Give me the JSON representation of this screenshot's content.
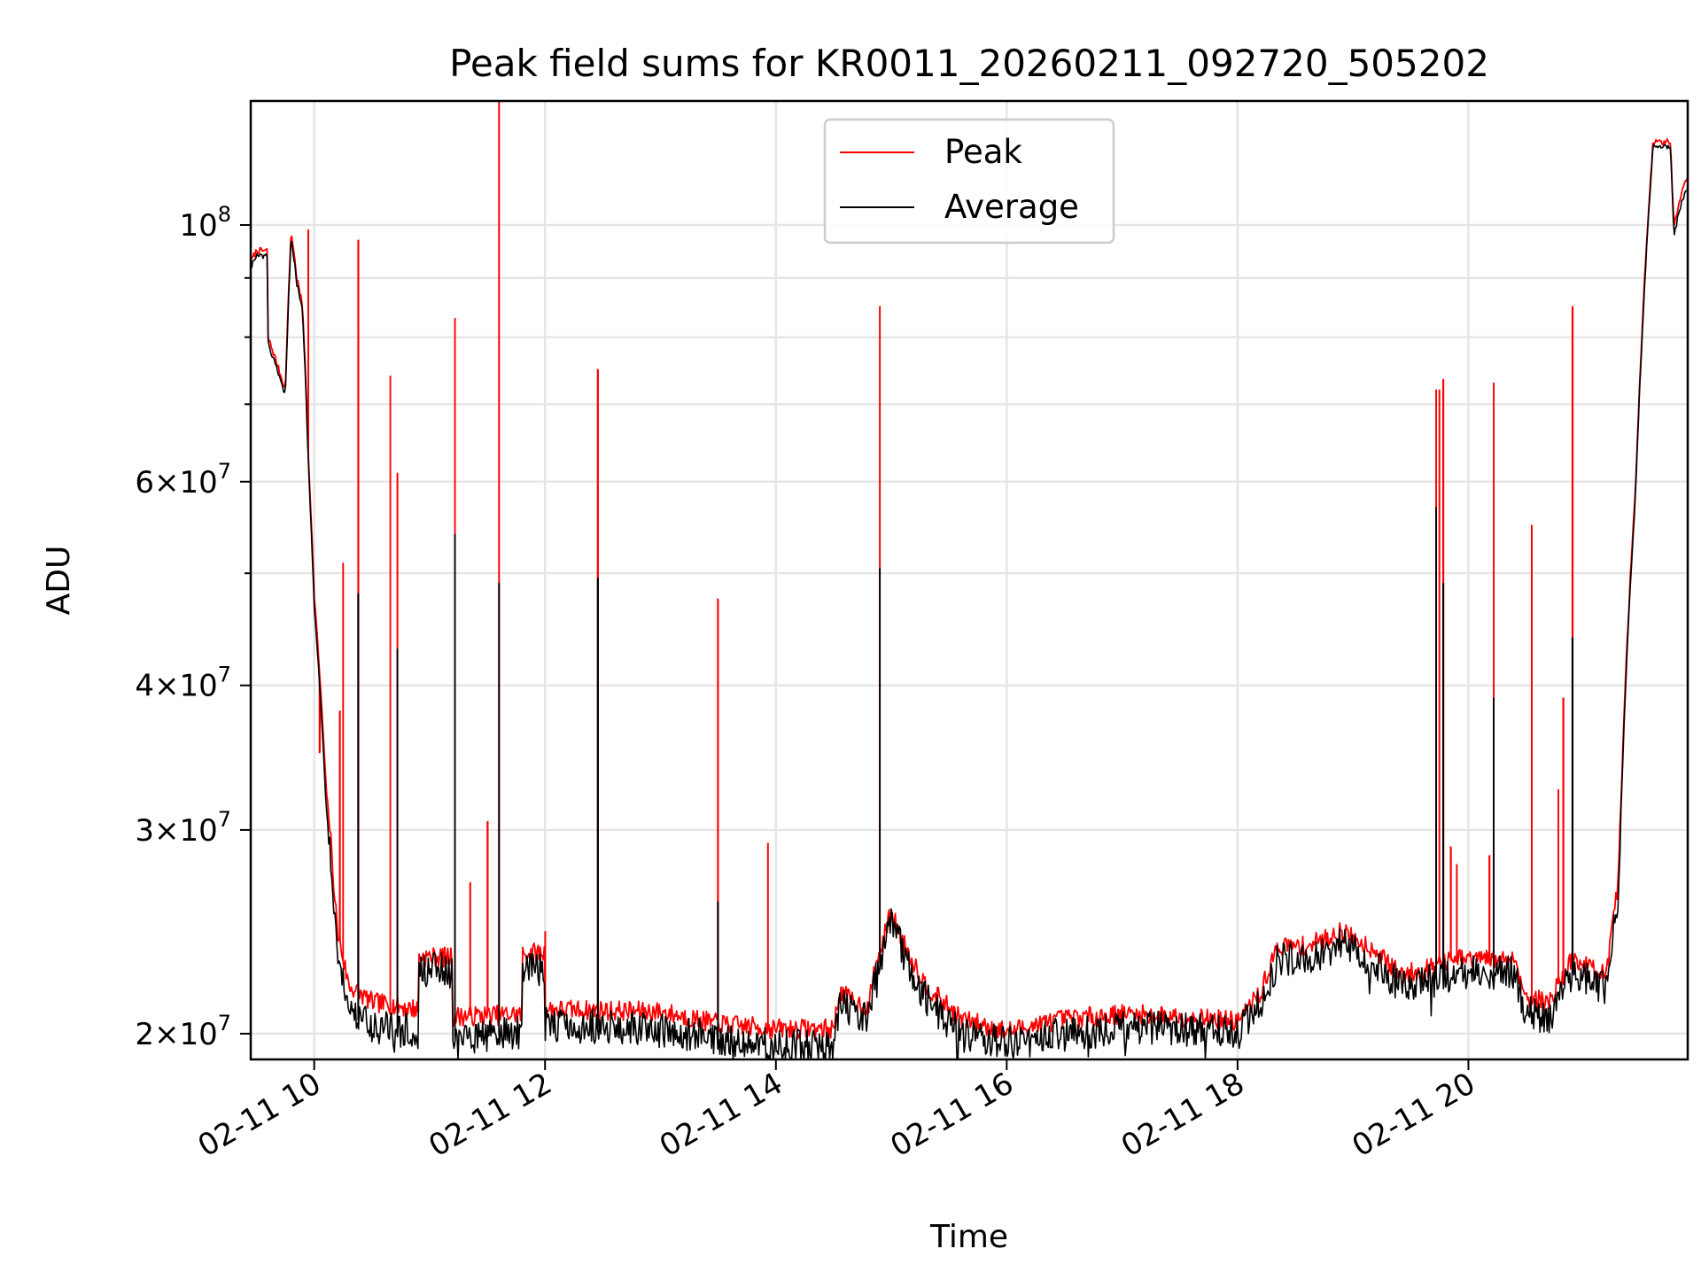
{
  "chart_data": {
    "type": "line",
    "title": "Peak field sums for KR0011_20260211_092720_505202",
    "xlabel": "Time",
    "ylabel": "ADU",
    "yscale": "log",
    "xlim_hours": [
      9.45,
      21.9
    ],
    "ylim": [
      19000000,
      128000000
    ],
    "grid": true,
    "legend_position": "upper center",
    "x_ticks": [
      {
        "value_hours": 10,
        "label": "02-11 10"
      },
      {
        "value_hours": 12,
        "label": "02-11 12"
      },
      {
        "value_hours": 14,
        "label": "02-11 14"
      },
      {
        "value_hours": 16,
        "label": "02-11 16"
      },
      {
        "value_hours": 18,
        "label": "02-11 18"
      },
      {
        "value_hours": 20,
        "label": "02-11 20"
      }
    ],
    "y_ticks": [
      {
        "value": 20000000,
        "mantissa": "2",
        "power": "7"
      },
      {
        "value": 30000000,
        "mantissa": "3",
        "power": "7"
      },
      {
        "value": 40000000,
        "mantissa": "4",
        "power": "7"
      },
      {
        "value": 60000000,
        "mantissa": "6",
        "power": "7"
      },
      {
        "value": 100000000,
        "mantissa": "",
        "power": "8"
      }
    ],
    "y_minor_ticks": [
      50000000,
      70000000,
      80000000,
      90000000
    ],
    "series": [
      {
        "name": "Peak",
        "color": "#ff0000",
        "baseline": [
          [
            9.45,
            93000000
          ],
          [
            9.5,
            95000000
          ],
          [
            9.6,
            95000000
          ],
          [
            9.6,
            80000000
          ],
          [
            9.75,
            72000000
          ],
          [
            9.8,
            99000000
          ],
          [
            9.85,
            90000000
          ],
          [
            9.9,
            85000000
          ],
          [
            9.95,
            63000000
          ],
          [
            10.0,
            48000000
          ],
          [
            10.1,
            33000000
          ],
          [
            10.2,
            24500000
          ],
          [
            10.3,
            22000000
          ],
          [
            10.5,
            21300000
          ],
          [
            10.9,
            21000000
          ],
          [
            10.9,
            23300000
          ],
          [
            11.2,
            23300000
          ],
          [
            11.2,
            20700000
          ],
          [
            11.8,
            20800000
          ],
          [
            11.8,
            23500000
          ],
          [
            12.0,
            23500000
          ],
          [
            12.0,
            21000000
          ],
          [
            13.0,
            20900000
          ],
          [
            13.5,
            20400000
          ],
          [
            14.0,
            20200000
          ],
          [
            14.5,
            20200000
          ],
          [
            14.55,
            21700000
          ],
          [
            14.8,
            21000000
          ],
          [
            14.85,
            22500000
          ],
          [
            15.0,
            25500000
          ],
          [
            15.1,
            24000000
          ],
          [
            15.3,
            22000000
          ],
          [
            15.6,
            20600000
          ],
          [
            16.0,
            20100000
          ],
          [
            16.5,
            20600000
          ],
          [
            17.0,
            20800000
          ],
          [
            17.5,
            20700000
          ],
          [
            18.0,
            20500000
          ],
          [
            18.2,
            21700000
          ],
          [
            18.35,
            23800000
          ],
          [
            18.6,
            23800000
          ],
          [
            18.9,
            24500000
          ],
          [
            19.2,
            23600000
          ],
          [
            19.4,
            22500000
          ],
          [
            19.6,
            22700000
          ],
          [
            19.9,
            23200000
          ],
          [
            20.2,
            23200000
          ],
          [
            20.4,
            23200000
          ],
          [
            20.5,
            21500000
          ],
          [
            20.7,
            21300000
          ],
          [
            20.9,
            23200000
          ],
          [
            21.2,
            22500000
          ],
          [
            21.3,
            27000000
          ],
          [
            21.45,
            60000000
          ],
          [
            21.6,
            118000000
          ],
          [
            21.75,
            118000000
          ],
          [
            21.78,
            100000000
          ],
          [
            21.85,
            107000000
          ],
          [
            21.9,
            110000000
          ]
        ],
        "spikes": [
          [
            9.95,
            99000000
          ],
          [
            10.05,
            35000000
          ],
          [
            10.22,
            38000000
          ],
          [
            10.25,
            51000000
          ],
          [
            10.38,
            97000000
          ],
          [
            10.66,
            74000000
          ],
          [
            10.72,
            61000000
          ],
          [
            11.15,
            23000000
          ],
          [
            11.22,
            83000000
          ],
          [
            11.35,
            27000000
          ],
          [
            11.5,
            30500000
          ],
          [
            11.6,
            128000000
          ],
          [
            12.0,
            24500000
          ],
          [
            12.46,
            75000000
          ],
          [
            13.5,
            47500000
          ],
          [
            13.93,
            29200000
          ],
          [
            14.9,
            85000000
          ],
          [
            19.72,
            72000000
          ],
          [
            19.75,
            72000000
          ],
          [
            19.78,
            73500000
          ],
          [
            19.85,
            29000000
          ],
          [
            19.9,
            28000000
          ],
          [
            20.18,
            28500000
          ],
          [
            20.22,
            73000000
          ],
          [
            20.55,
            55000000
          ],
          [
            20.78,
            32500000
          ],
          [
            20.82,
            39000000
          ],
          [
            20.9,
            85000000
          ]
        ]
      },
      {
        "name": "Average",
        "color": "#000000",
        "baseline": [
          [
            9.45,
            92000000
          ],
          [
            9.5,
            94000000
          ],
          [
            9.6,
            94000000
          ],
          [
            9.6,
            79000000
          ],
          [
            9.75,
            71000000
          ],
          [
            9.8,
            98000000
          ],
          [
            9.85,
            89000000
          ],
          [
            9.9,
            84000000
          ],
          [
            9.95,
            62000000
          ],
          [
            10.0,
            47000000
          ],
          [
            10.1,
            32000000
          ],
          [
            10.2,
            23500000
          ],
          [
            10.3,
            20700000
          ],
          [
            10.5,
            20300000
          ],
          [
            10.9,
            20100000
          ],
          [
            10.9,
            22700000
          ],
          [
            11.2,
            22700000
          ],
          [
            11.2,
            19900000
          ],
          [
            11.8,
            20000000
          ],
          [
            11.8,
            22800000
          ],
          [
            12.0,
            22800000
          ],
          [
            12.0,
            20400000
          ],
          [
            13.0,
            20200000
          ],
          [
            13.5,
            19800000
          ],
          [
            14.0,
            19500000
          ],
          [
            14.5,
            19500000
          ],
          [
            14.55,
            21200000
          ],
          [
            14.8,
            20500000
          ],
          [
            14.85,
            22000000
          ],
          [
            15.0,
            25000000
          ],
          [
            15.1,
            23500000
          ],
          [
            15.3,
            21400000
          ],
          [
            15.6,
            20000000
          ],
          [
            16.0,
            19600000
          ],
          [
            16.5,
            20000000
          ],
          [
            17.0,
            20200000
          ],
          [
            17.5,
            20200000
          ],
          [
            18.0,
            20000000
          ],
          [
            18.2,
            21200000
          ],
          [
            18.35,
            23200000
          ],
          [
            18.6,
            23200000
          ],
          [
            18.9,
            23900000
          ],
          [
            19.2,
            23000000
          ],
          [
            19.4,
            22000000
          ],
          [
            19.6,
            22100000
          ],
          [
            19.9,
            22600000
          ],
          [
            20.2,
            22600000
          ],
          [
            20.4,
            22600000
          ],
          [
            20.5,
            20900000
          ],
          [
            20.7,
            20700000
          ],
          [
            20.9,
            22600000
          ],
          [
            21.2,
            21900000
          ],
          [
            21.3,
            26300000
          ],
          [
            21.45,
            59000000
          ],
          [
            21.6,
            117000000
          ],
          [
            21.75,
            117000000
          ],
          [
            21.78,
            98000000
          ],
          [
            21.85,
            105000000
          ],
          [
            21.9,
            108000000
          ]
        ],
        "spikes": [
          [
            10.38,
            48000000
          ],
          [
            10.72,
            43000000
          ],
          [
            11.22,
            54000000
          ],
          [
            11.6,
            49000000
          ],
          [
            12.46,
            49500000
          ],
          [
            13.5,
            26000000
          ],
          [
            14.9,
            50500000
          ],
          [
            19.72,
            57000000
          ],
          [
            19.78,
            49000000
          ],
          [
            20.22,
            39000000
          ],
          [
            20.9,
            44000000
          ]
        ]
      }
    ]
  }
}
